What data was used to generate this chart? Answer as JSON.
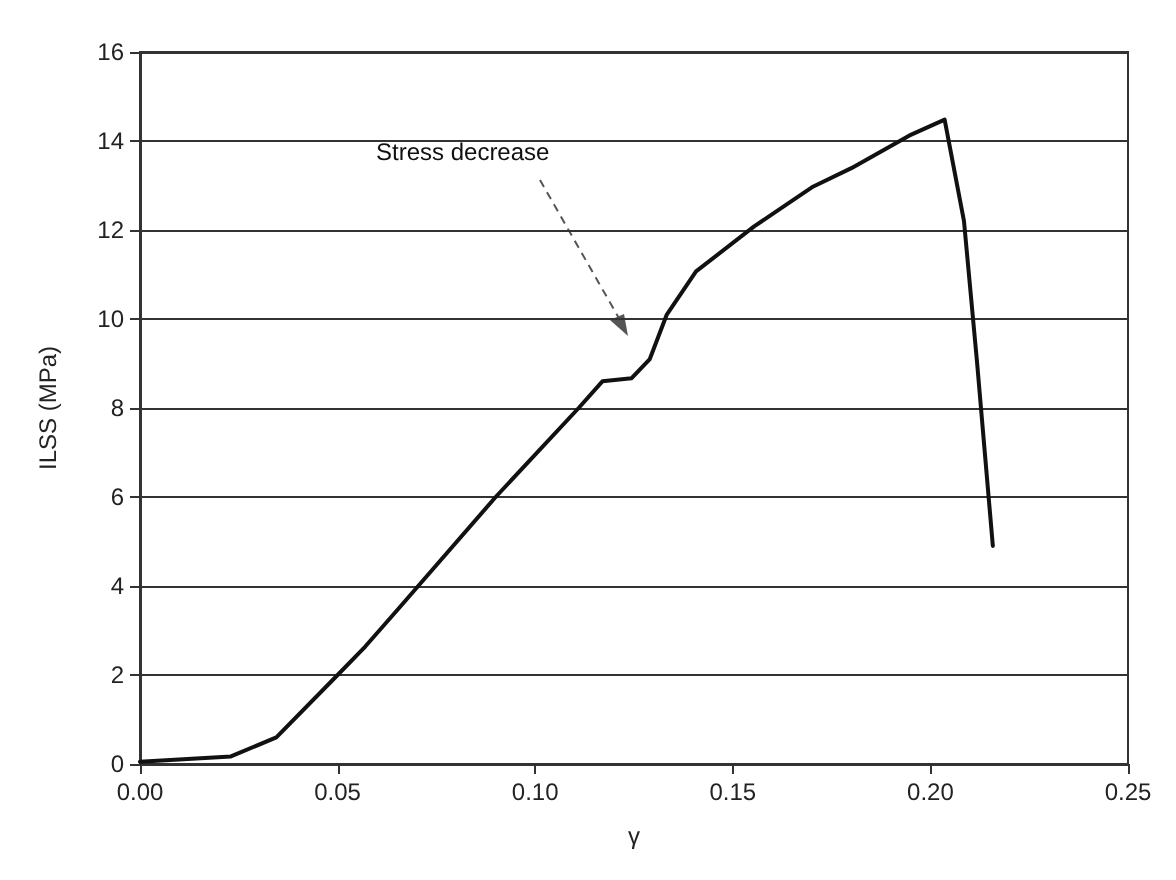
{
  "chart_data": {
    "type": "line",
    "xlabel": "γ",
    "ylabel": "ILSS (MPa)",
    "xlim": [
      0,
      0.25
    ],
    "ylim": [
      0,
      16
    ],
    "xticks": [
      {
        "value": 0,
        "label": "0.00"
      },
      {
        "value": 0.05,
        "label": "0.05"
      },
      {
        "value": 0.1,
        "label": "0.10"
      },
      {
        "value": 0.15,
        "label": "0.15"
      },
      {
        "value": 0.2,
        "label": "0.20"
      },
      {
        "value": 0.25,
        "label": "0.25"
      }
    ],
    "yticks": [
      0,
      2,
      4,
      6,
      8,
      10,
      12,
      14,
      16
    ],
    "grid": "y",
    "marker": "none",
    "line_style": "solid",
    "annotations": [
      "Stress decrease"
    ],
    "series": [
      {
        "color": "#111111",
        "x": [
          0,
          0.023,
          0.0345,
          0.05,
          0.057,
          0.0655,
          0.0704,
          0.09,
          0.111,
          0.117,
          0.1244,
          0.129,
          0.1333,
          0.1407,
          0.1554,
          0.17,
          0.18,
          0.1946,
          0.2036,
          0.2085,
          0.2118,
          0.2158
        ],
        "values": [
          0.05,
          0.17,
          0.6,
          2.0,
          2.64,
          3.5,
          4.0,
          6.0,
          8.0,
          8.6,
          8.67,
          9.1,
          10.1,
          11.07,
          12.08,
          12.96,
          13.39,
          14.12,
          14.48,
          12.2,
          9.03,
          4.9
        ]
      }
    ]
  }
}
